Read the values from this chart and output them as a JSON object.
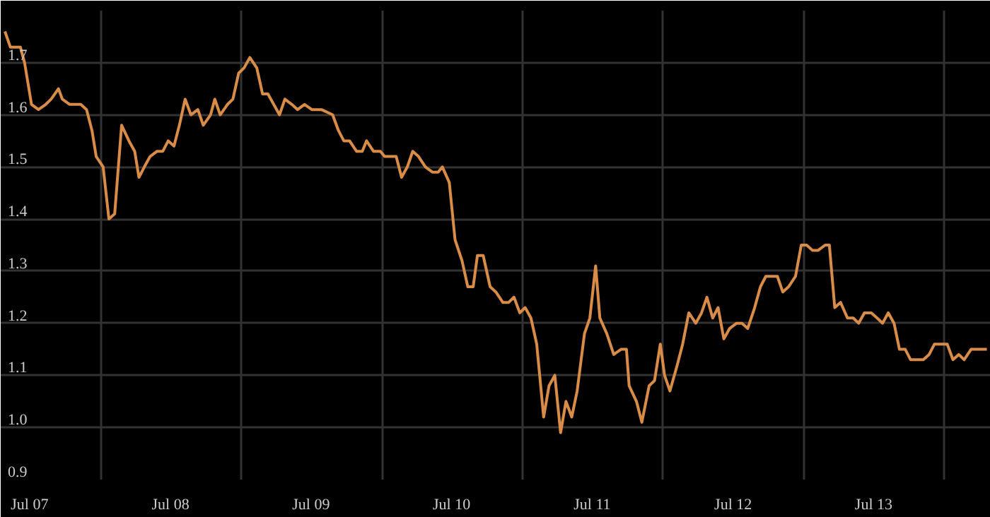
{
  "chart_data": {
    "type": "line",
    "grid": true,
    "marker": "none",
    "line_style": "solid",
    "xlim": [
      "2007-04-17",
      "2014-05-01"
    ],
    "ylim": [
      0.9,
      1.8
    ],
    "xticks": [
      {
        "value": "2007-07-01",
        "label": "Jul 07"
      },
      {
        "value": "2008-01-01",
        "label": null
      },
      {
        "value": "2008-07-01",
        "label": "Jul 08"
      },
      {
        "value": "2009-01-01",
        "label": null
      },
      {
        "value": "2009-07-01",
        "label": "Jul 09"
      },
      {
        "value": "2010-01-01",
        "label": null
      },
      {
        "value": "2010-07-01",
        "label": "Jul 10"
      },
      {
        "value": "2011-01-01",
        "label": null
      },
      {
        "value": "2011-07-01",
        "label": "Jul 11"
      },
      {
        "value": "2012-01-01",
        "label": null
      },
      {
        "value": "2012-07-01",
        "label": "Jul 12"
      },
      {
        "value": "2013-01-01",
        "label": null
      },
      {
        "value": "2013-07-01",
        "label": "Jul 13"
      },
      {
        "value": "2014-01-01",
        "label": null
      }
    ],
    "yticks": [
      0.9,
      {
        "value": 1.0,
        "label": "1.0"
      },
      1.1,
      1.2,
      1.3,
      1.4,
      1.5,
      1.6,
      1.7,
      {
        "value": 1.8,
        "label": null
      }
    ],
    "series": [
      {
        "color": "#d98c48",
        "x": [
          "2007-04-28",
          "2007-05-12",
          "2007-05-27",
          "2007-06-07",
          "2007-06-18",
          "2007-07-06",
          "2007-07-24",
          "2007-08-12",
          "2007-08-26",
          "2007-09-14",
          "2007-09-24",
          "2007-10-13",
          "2007-10-27",
          "2007-11-11",
          "2007-11-26",
          "2007-12-10",
          "2007-12-21",
          "2008-01-08",
          "2008-01-23",
          "2008-02-07",
          "2008-02-25",
          "2008-03-15",
          "2008-03-30",
          "2008-04-10",
          "2008-04-24",
          "2008-05-09",
          "2008-05-27",
          "2008-06-11",
          "2008-06-25",
          "2008-07-10",
          "2008-07-24",
          "2008-08-08",
          "2008-08-23",
          "2008-09-10",
          "2008-09-24",
          "2008-10-13",
          "2008-10-24",
          "2008-11-07",
          "2008-11-26",
          "2008-12-10",
          "2008-12-25",
          "2009-01-08",
          "2009-01-23",
          "2009-02-10",
          "2009-02-25",
          "2009-03-11",
          "2009-03-26",
          "2009-04-10",
          "2009-04-24",
          "2009-05-12",
          "2009-05-27",
          "2009-06-14",
          "2009-07-03",
          "2009-07-28",
          "2009-08-26",
          "2009-09-10",
          "2009-09-24",
          "2009-10-09",
          "2009-10-27",
          "2009-11-11",
          "2009-11-22",
          "2009-12-10",
          "2009-12-28",
          "2010-01-08",
          "2010-02-07",
          "2010-02-21",
          "2010-03-08",
          "2010-03-22",
          "2010-04-06",
          "2010-04-24",
          "2010-05-12",
          "2010-05-27",
          "2010-06-07",
          "2010-06-25",
          "2010-07-10",
          "2010-07-28",
          "2010-08-12",
          "2010-08-26",
          "2010-09-06",
          "2010-09-21",
          "2010-10-09",
          "2010-10-24",
          "2010-11-11",
          "2010-11-26",
          "2010-12-10",
          "2010-12-25",
          "2011-01-08",
          "2011-01-23",
          "2011-02-07",
          "2011-02-25",
          "2011-03-11",
          "2011-03-26",
          "2011-04-10",
          "2011-04-24",
          "2011-05-09",
          "2011-05-23",
          "2011-06-11",
          "2011-06-25",
          "2011-07-10",
          "2011-07-21",
          "2011-08-08",
          "2011-08-26",
          "2011-09-14",
          "2011-09-28",
          "2011-10-05",
          "2011-10-24",
          "2011-11-07",
          "2011-11-26",
          "2011-12-10",
          "2011-12-25",
          "2012-01-05",
          "2012-01-19",
          "2012-02-07",
          "2012-02-21",
          "2012-03-08",
          "2012-03-26",
          "2012-04-10",
          "2012-04-24",
          "2012-05-09",
          "2012-05-23",
          "2012-06-07",
          "2012-06-22",
          "2012-07-10",
          "2012-07-24",
          "2012-08-08",
          "2012-08-26",
          "2012-09-10",
          "2012-09-24",
          "2012-10-09",
          "2012-10-24",
          "2012-11-07",
          "2012-11-22",
          "2012-12-10",
          "2012-12-25",
          "2013-01-08",
          "2013-01-23",
          "2013-02-07",
          "2013-02-25",
          "2013-03-08",
          "2013-03-22",
          "2013-04-06",
          "2013-04-24",
          "2013-05-09",
          "2013-05-23",
          "2013-06-07",
          "2013-06-25",
          "2013-07-10",
          "2013-07-24",
          "2013-08-08",
          "2013-08-23",
          "2013-09-06",
          "2013-09-21",
          "2013-10-05",
          "2013-10-24",
          "2013-11-07",
          "2013-11-22",
          "2013-12-06",
          "2013-12-21",
          "2014-01-08",
          "2014-01-23",
          "2014-02-07",
          "2014-02-21",
          "2014-03-11",
          "2014-03-26",
          "2014-04-10",
          "2014-04-21"
        ],
        "values": [
          1.76,
          1.73,
          1.73,
          1.73,
          1.7,
          1.62,
          1.61,
          1.62,
          1.63,
          1.65,
          1.63,
          1.62,
          1.62,
          1.62,
          1.61,
          1.57,
          1.52,
          1.5,
          1.4,
          1.41,
          1.58,
          1.55,
          1.53,
          1.48,
          1.5,
          1.52,
          1.53,
          1.53,
          1.55,
          1.54,
          1.58,
          1.63,
          1.6,
          1.61,
          1.58,
          1.6,
          1.63,
          1.6,
          1.62,
          1.63,
          1.68,
          1.69,
          1.71,
          1.69,
          1.64,
          1.64,
          1.62,
          1.6,
          1.63,
          1.62,
          1.61,
          1.62,
          1.61,
          1.61,
          1.6,
          1.57,
          1.55,
          1.55,
          1.53,
          1.53,
          1.55,
          1.53,
          1.53,
          1.52,
          1.52,
          1.48,
          1.5,
          1.53,
          1.52,
          1.5,
          1.49,
          1.49,
          1.5,
          1.47,
          1.36,
          1.32,
          1.27,
          1.27,
          1.33,
          1.33,
          1.27,
          1.26,
          1.24,
          1.24,
          1.25,
          1.22,
          1.23,
          1.21,
          1.16,
          1.02,
          1.08,
          1.1,
          0.99,
          1.05,
          1.02,
          1.07,
          1.18,
          1.21,
          1.31,
          1.21,
          1.18,
          1.14,
          1.15,
          1.15,
          1.08,
          1.05,
          1.01,
          1.08,
          1.09,
          1.16,
          1.1,
          1.07,
          1.12,
          1.16,
          1.22,
          1.2,
          1.22,
          1.25,
          1.21,
          1.23,
          1.17,
          1.19,
          1.2,
          1.2,
          1.19,
          1.23,
          1.27,
          1.29,
          1.29,
          1.29,
          1.26,
          1.27,
          1.29,
          1.35,
          1.35,
          1.34,
          1.34,
          1.35,
          1.35,
          1.23,
          1.24,
          1.21,
          1.21,
          1.2,
          1.22,
          1.22,
          1.21,
          1.2,
          1.22,
          1.2,
          1.15,
          1.15,
          1.13,
          1.13,
          1.13,
          1.14,
          1.16,
          1.16,
          1.16,
          1.13,
          1.14,
          1.13,
          1.15,
          1.15,
          1.15,
          1.15
        ]
      }
    ]
  }
}
